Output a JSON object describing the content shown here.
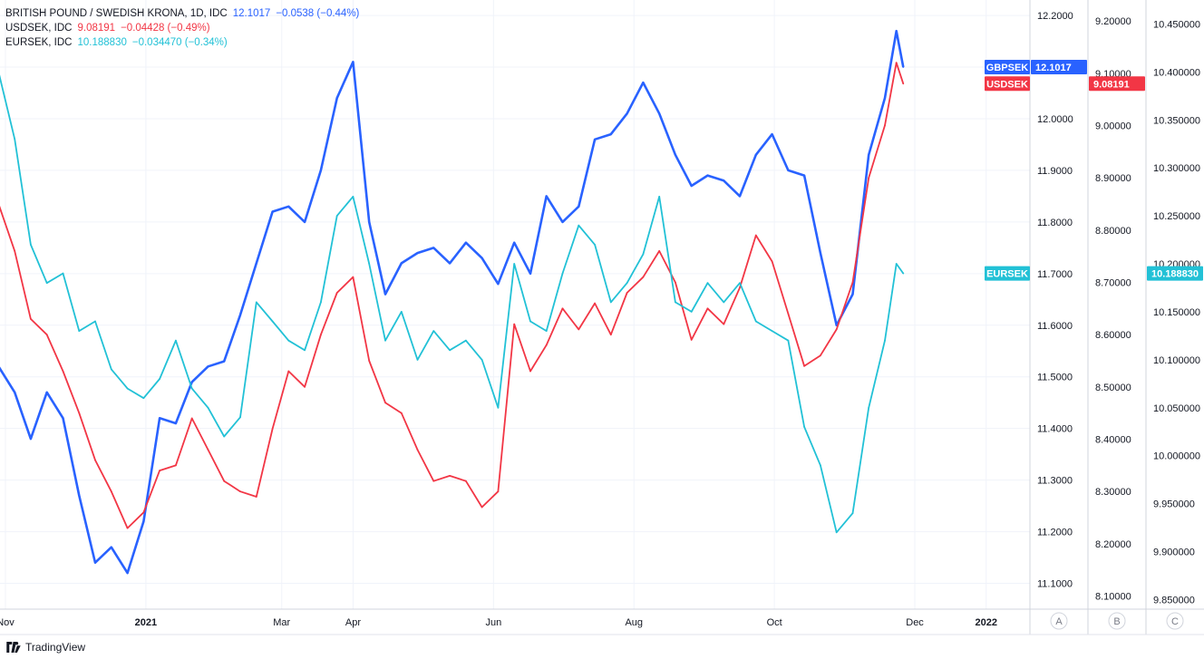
{
  "legend": [
    {
      "name": "BRITISH POUND / SWEDISH KRONA, 1D, IDC",
      "value": "12.1017",
      "change": "−0.0538 (−0.44%)",
      "color": "#2962ff"
    },
    {
      "name": "USDSEK, IDC",
      "value": "9.08191",
      "change": "−0.04428 (−0.49%)",
      "color": "#f23645"
    },
    {
      "name": "EURSEK, IDC",
      "value": "10.188830",
      "change": "−0.034470 (−0.34%)",
      "color": "#22c1d6"
    }
  ],
  "footer": {
    "brand": "TradingView"
  },
  "scale_labels": {
    "a": "A",
    "b": "B",
    "c": "C"
  },
  "chart_data": {
    "type": "line",
    "x_ticks": [
      "Nov",
      "2021",
      "Mar",
      "Apr",
      "Jun",
      "Aug",
      "Oct",
      "Dec",
      "2022"
    ],
    "x_range": [
      "2020-11-01",
      "2022-01-20"
    ],
    "axes": {
      "A": {
        "range": [
          11.05,
          12.23
        ],
        "ticks": [
          "11.1000",
          "11.2000",
          "11.3000",
          "11.4000",
          "11.5000",
          "11.6000",
          "11.7000",
          "11.8000",
          "11.9000",
          "12.0000",
          "12.1000",
          "12.2000"
        ]
      },
      "B": {
        "range": [
          8.075,
          9.24
        ],
        "ticks": [
          "8.10000",
          "8.20000",
          "8.30000",
          "8.40000",
          "8.50000",
          "8.60000",
          "8.70000",
          "8.80000",
          "8.90000",
          "9.00000",
          "9.10000",
          "9.20000"
        ]
      },
      "C": {
        "range": [
          9.84,
          10.475
        ],
        "ticks": [
          "9.850000",
          "9.900000",
          "9.950000",
          "10.000000",
          "10.050000",
          "10.100000",
          "10.150000",
          "10.200000",
          "10.250000",
          "10.300000",
          "10.350000",
          "10.400000",
          "10.450000"
        ]
      }
    },
    "series": [
      {
        "name": "GBPSEK",
        "axis": "A",
        "color": "#2962ff",
        "last_label": "12.1017",
        "x": [
          "2020-10-29",
          "2020-11-05",
          "2020-11-12",
          "2020-11-19",
          "2020-11-26",
          "2020-12-03",
          "2020-12-10",
          "2020-12-17",
          "2020-12-24",
          "2020-12-31",
          "2021-01-07",
          "2021-01-14",
          "2021-01-21",
          "2021-01-28",
          "2021-02-04",
          "2021-02-11",
          "2021-02-18",
          "2021-02-25",
          "2021-03-04",
          "2021-03-11",
          "2021-03-18",
          "2021-03-25",
          "2021-04-01",
          "2021-04-08",
          "2021-04-15",
          "2021-04-22",
          "2021-04-29",
          "2021-05-06",
          "2021-05-13",
          "2021-05-20",
          "2021-05-27",
          "2021-06-03",
          "2021-06-10",
          "2021-06-17",
          "2021-06-24",
          "2021-07-01",
          "2021-07-08",
          "2021-07-15",
          "2021-07-22",
          "2021-07-29",
          "2021-08-05",
          "2021-08-12",
          "2021-08-19",
          "2021-08-26",
          "2021-09-02",
          "2021-09-09",
          "2021-09-16",
          "2021-09-23",
          "2021-09-30",
          "2021-10-07",
          "2021-10-14",
          "2021-10-21",
          "2021-10-28",
          "2021-11-04",
          "2021-11-11",
          "2021-11-18",
          "2021-11-23",
          "2021-11-26"
        ],
        "values": [
          11.52,
          11.47,
          11.38,
          11.47,
          11.42,
          11.27,
          11.14,
          11.17,
          11.12,
          11.22,
          11.42,
          11.41,
          11.49,
          11.52,
          11.53,
          11.62,
          11.72,
          11.82,
          11.83,
          11.8,
          11.9,
          12.04,
          12.11,
          11.8,
          11.66,
          11.72,
          11.74,
          11.75,
          11.72,
          11.76,
          11.73,
          11.68,
          11.76,
          11.7,
          11.85,
          11.8,
          11.83,
          11.96,
          11.97,
          12.01,
          12.07,
          12.01,
          11.93,
          11.87,
          11.89,
          11.88,
          11.85,
          11.93,
          11.97,
          11.9,
          11.89,
          11.74,
          11.6,
          11.66,
          11.93,
          12.04,
          12.17,
          12.1
        ]
      },
      {
        "name": "USDSEK",
        "axis": "B",
        "color": "#f23645",
        "last_label": "9.08191",
        "x": [
          "2020-10-29",
          "2020-11-05",
          "2020-11-12",
          "2020-11-19",
          "2020-11-26",
          "2020-12-03",
          "2020-12-10",
          "2020-12-17",
          "2020-12-24",
          "2020-12-31",
          "2021-01-07",
          "2021-01-14",
          "2021-01-21",
          "2021-01-28",
          "2021-02-04",
          "2021-02-11",
          "2021-02-18",
          "2021-02-25",
          "2021-03-04",
          "2021-03-11",
          "2021-03-18",
          "2021-03-25",
          "2021-04-01",
          "2021-04-08",
          "2021-04-15",
          "2021-04-22",
          "2021-04-29",
          "2021-05-06",
          "2021-05-13",
          "2021-05-20",
          "2021-05-27",
          "2021-06-03",
          "2021-06-10",
          "2021-06-17",
          "2021-06-24",
          "2021-07-01",
          "2021-07-08",
          "2021-07-15",
          "2021-07-22",
          "2021-07-29",
          "2021-08-05",
          "2021-08-12",
          "2021-08-19",
          "2021-08-26",
          "2021-09-02",
          "2021-09-09",
          "2021-09-16",
          "2021-09-23",
          "2021-09-30",
          "2021-10-07",
          "2021-10-14",
          "2021-10-21",
          "2021-10-28",
          "2021-11-04",
          "2021-11-11",
          "2021-11-18",
          "2021-11-23",
          "2021-11-26"
        ],
        "values": [
          8.85,
          8.76,
          8.63,
          8.6,
          8.53,
          8.45,
          8.36,
          8.3,
          8.23,
          8.26,
          8.34,
          8.35,
          8.44,
          8.38,
          8.32,
          8.3,
          8.29,
          8.42,
          8.53,
          8.5,
          8.6,
          8.68,
          8.71,
          8.55,
          8.47,
          8.45,
          8.38,
          8.32,
          8.33,
          8.32,
          8.27,
          8.3,
          8.62,
          8.53,
          8.58,
          8.65,
          8.61,
          8.66,
          8.6,
          8.68,
          8.71,
          8.76,
          8.7,
          8.59,
          8.65,
          8.62,
          8.69,
          8.79,
          8.74,
          8.64,
          8.54,
          8.56,
          8.61,
          8.7,
          8.9,
          9.0,
          9.12,
          9.08
        ]
      },
      {
        "name": "EURSEK",
        "axis": "C",
        "color": "#22c1d6",
        "last_label": "10.188830",
        "x": [
          "2020-10-29",
          "2020-11-05",
          "2020-11-12",
          "2020-11-19",
          "2020-11-26",
          "2020-12-03",
          "2020-12-10",
          "2020-12-17",
          "2020-12-24",
          "2020-12-31",
          "2021-01-07",
          "2021-01-14",
          "2021-01-21",
          "2021-01-28",
          "2021-02-04",
          "2021-02-11",
          "2021-02-18",
          "2021-02-25",
          "2021-03-04",
          "2021-03-11",
          "2021-03-18",
          "2021-03-25",
          "2021-04-01",
          "2021-04-08",
          "2021-04-15",
          "2021-04-22",
          "2021-04-29",
          "2021-05-06",
          "2021-05-13",
          "2021-05-20",
          "2021-05-27",
          "2021-06-03",
          "2021-06-10",
          "2021-06-17",
          "2021-06-24",
          "2021-07-01",
          "2021-07-08",
          "2021-07-15",
          "2021-07-22",
          "2021-07-29",
          "2021-08-05",
          "2021-08-12",
          "2021-08-19",
          "2021-08-26",
          "2021-09-02",
          "2021-09-09",
          "2021-09-16",
          "2021-09-23",
          "2021-09-30",
          "2021-10-07",
          "2021-10-14",
          "2021-10-21",
          "2021-10-28",
          "2021-11-04",
          "2021-11-11",
          "2021-11-18",
          "2021-11-23",
          "2021-11-26"
        ],
        "values": [
          10.4,
          10.33,
          10.22,
          10.18,
          10.19,
          10.13,
          10.14,
          10.09,
          10.07,
          10.06,
          10.08,
          10.12,
          10.07,
          10.05,
          10.02,
          10.04,
          10.16,
          10.14,
          10.12,
          10.11,
          10.16,
          10.25,
          10.27,
          10.2,
          10.12,
          10.15,
          10.1,
          10.13,
          10.11,
          10.12,
          10.1,
          10.05,
          10.2,
          10.14,
          10.13,
          10.19,
          10.24,
          10.22,
          10.16,
          10.18,
          10.21,
          10.27,
          10.16,
          10.15,
          10.18,
          10.16,
          10.18,
          10.14,
          10.13,
          10.12,
          10.03,
          9.99,
          9.92,
          9.94,
          10.05,
          10.12,
          10.2,
          10.19
        ]
      }
    ]
  }
}
